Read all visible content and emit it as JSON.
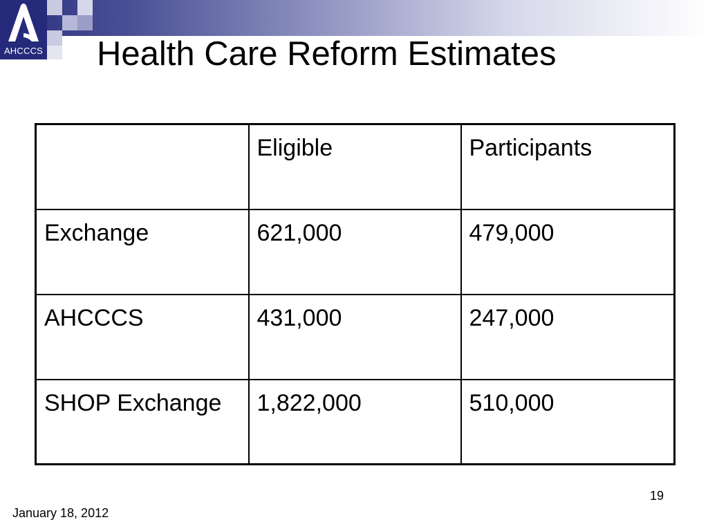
{
  "branding": {
    "logo_text": "AHCCCS",
    "logo_mark": "a-mark-icon"
  },
  "slide": {
    "title": "Health Care Reform Estimates",
    "date": "January 18, 2012",
    "page_number": "19"
  },
  "table": {
    "headers": [
      "",
      "Eligible",
      "Participants"
    ],
    "rows": [
      [
        "Exchange",
        "621,000",
        "479,000"
      ],
      [
        "AHCCCS",
        "431,000",
        "247,000"
      ],
      [
        "SHOP Exchange",
        "1,822,000",
        "510,000"
      ]
    ]
  },
  "colors": {
    "header_dark": "#2a2f7e",
    "logo_bg": "#252a7a",
    "square_light": "#c9cbe3",
    "square_mid": "#9a9dc8"
  }
}
